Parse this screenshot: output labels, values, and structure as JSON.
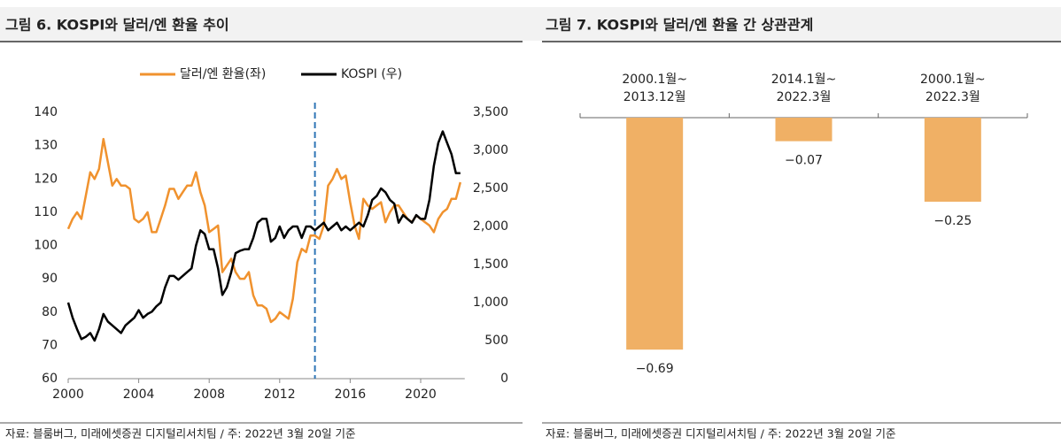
{
  "chart_data": [
    {
      "type": "line",
      "title": "그림 6. KOSPI와 달러/엔 환율 추이",
      "source": "자료: 블룸버그, 미래에셋증권 디지털리서치팀 / 주: 2022년 3월 20일 기준",
      "x": [
        2000,
        2000.25,
        2000.5,
        2000.75,
        2001,
        2001.25,
        2001.5,
        2001.75,
        2002,
        2002.25,
        2002.5,
        2002.75,
        2003,
        2003.25,
        2003.5,
        2003.75,
        2004,
        2004.25,
        2004.5,
        2004.75,
        2005,
        2005.25,
        2005.5,
        2005.75,
        2006,
        2006.25,
        2006.5,
        2006.75,
        2007,
        2007.25,
        2007.5,
        2007.75,
        2008,
        2008.25,
        2008.5,
        2008.75,
        2009,
        2009.25,
        2009.5,
        2009.75,
        2010,
        2010.25,
        2010.5,
        2010.75,
        2011,
        2011.25,
        2011.5,
        2011.75,
        2012,
        2012.25,
        2012.5,
        2012.75,
        2013,
        2013.25,
        2013.5,
        2013.75,
        2014,
        2014.25,
        2014.5,
        2014.75,
        2015,
        2015.25,
        2015.5,
        2015.75,
        2016,
        2016.25,
        2016.5,
        2016.75,
        2017,
        2017.25,
        2017.5,
        2017.75,
        2018,
        2018.25,
        2018.5,
        2018.75,
        2019,
        2019.25,
        2019.5,
        2019.75,
        2020,
        2020.25,
        2020.5,
        2020.75,
        2021,
        2021.25,
        2021.5,
        2021.75,
        2022,
        2022.25
      ],
      "series": [
        {
          "name": "달러/엔 환율(좌)",
          "color": "#f0922e",
          "axis": "y",
          "values": [
            105,
            108,
            110,
            108,
            115,
            122,
            120,
            123,
            132,
            125,
            118,
            120,
            118,
            118,
            117,
            108,
            107,
            108,
            110,
            104,
            104,
            108,
            112,
            117,
            117,
            114,
            116,
            118,
            118,
            122,
            116,
            112,
            104,
            105,
            106,
            92,
            94,
            96,
            92,
            90,
            90,
            92,
            85,
            82,
            82,
            81,
            77,
            78,
            80,
            79,
            78,
            84,
            95,
            99,
            98,
            103,
            103,
            102,
            106,
            118,
            120,
            123,
            120,
            121,
            113,
            106,
            102,
            114,
            112,
            111,
            112,
            113,
            107,
            110,
            112,
            112,
            110,
            108,
            107,
            109,
            108,
            107,
            106,
            104,
            108,
            110,
            111,
            114,
            114,
            119
          ]
        },
        {
          "name": "KOSPI (우)",
          "color": "#000000",
          "axis": "y2",
          "values": [
            1000,
            800,
            650,
            520,
            550,
            600,
            500,
            650,
            850,
            750,
            700,
            650,
            600,
            700,
            750,
            800,
            900,
            800,
            850,
            880,
            950,
            1000,
            1200,
            1350,
            1350,
            1300,
            1350,
            1400,
            1450,
            1750,
            1950,
            1900,
            1700,
            1700,
            1450,
            1100,
            1200,
            1400,
            1650,
            1680,
            1700,
            1700,
            1850,
            2050,
            2100,
            2100,
            1800,
            1850,
            2000,
            1850,
            1950,
            2000,
            2000,
            1850,
            2000,
            2000,
            1950,
            2000,
            2050,
            1950,
            2000,
            2050,
            1950,
            2000,
            1950,
            2000,
            2050,
            2000,
            2150,
            2350,
            2400,
            2500,
            2450,
            2350,
            2300,
            2050,
            2150,
            2100,
            2050,
            2150,
            2100,
            2100,
            2350,
            2800,
            3100,
            3250,
            3100,
            2950,
            2700,
            2700
          ]
        }
      ],
      "xlim": [
        2000,
        2022.5
      ],
      "xticks": [
        2000,
        2004,
        2008,
        2012,
        2016,
        2020
      ],
      "ylim": [
        60,
        140
      ],
      "yticks": [
        60,
        70,
        80,
        90,
        100,
        110,
        120,
        130,
        140
      ],
      "y2lim": [
        0,
        3500
      ],
      "y2ticks": [
        0,
        500,
        {
          "value": 1000,
          "label": "1,000"
        },
        {
          "value": 1500,
          "label": "1,500"
        },
        {
          "value": 2000,
          "label": "2,000"
        },
        {
          "value": 2500,
          "label": "2,500"
        },
        {
          "value": 3000,
          "label": "3,000"
        },
        {
          "value": 3500,
          "label": "3,500"
        }
      ],
      "vline": 2014,
      "vline_color": "#2e75b6",
      "legend": "top"
    },
    {
      "type": "bar",
      "title": "그림 7. KOSPI와 달러/엔 환율 간 상관관계",
      "source": "자료: 블룸버그, 미래에셋증권 디지털리서치팀 / 주: 2022년 3월 20일 기준",
      "categories": [
        [
          "2000.1월~",
          "2013.12월"
        ],
        [
          "2014.1월~",
          "2022.3월"
        ],
        [
          "2000.1월~",
          "2022.3월"
        ]
      ],
      "values": [
        -0.69,
        -0.07,
        -0.25
      ],
      "value_labels": [
        "−0.69",
        "−0.07",
        "−0.25"
      ],
      "color": "#f0b065",
      "ylim": [
        -0.7,
        0
      ]
    }
  ]
}
